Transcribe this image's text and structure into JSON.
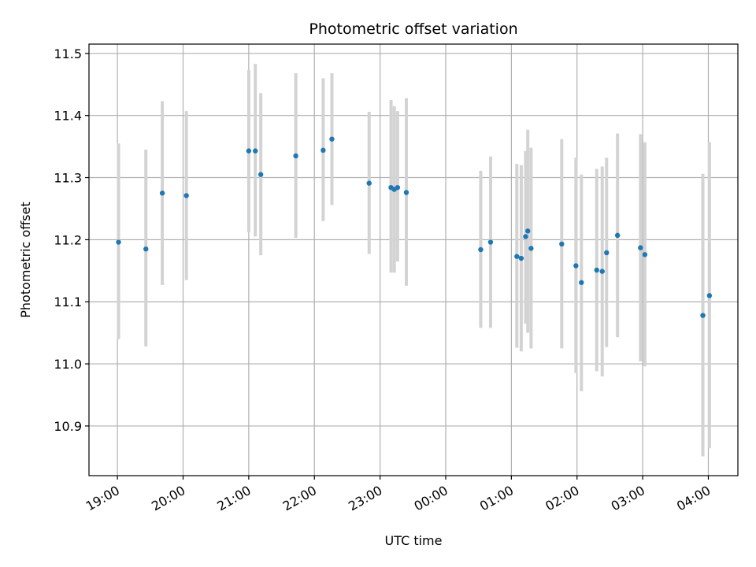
{
  "chart_data": {
    "type": "scatter",
    "title": "Photometric offset variation",
    "xlabel": "UTC time",
    "ylabel": "Photometric offset",
    "x_axis": {
      "type": "time",
      "tick_labels": [
        "19:00",
        "20:00",
        "21:00",
        "22:00",
        "23:00",
        "00:00",
        "01:00",
        "02:00",
        "03:00",
        "04:00"
      ],
      "range": [
        "18:34",
        "04:27"
      ]
    },
    "y_axis": {
      "ticks": [
        10.9,
        11.0,
        11.1,
        11.2,
        11.3,
        11.4,
        11.5
      ],
      "tick_labels": [
        "10.9",
        "11.0",
        "11.1",
        "11.2",
        "11.3",
        "11.4",
        "11.5"
      ],
      "ylim": [
        10.82,
        11.515
      ]
    },
    "grid": true,
    "colors": {
      "marker": "#1f77b4",
      "errorbar": "#d3d3d3",
      "grid": "#b0b0b0",
      "axis": "#000000"
    },
    "points": [
      {
        "time": "19:01",
        "y": 11.196,
        "err_low": 11.04,
        "err_high": 11.355
      },
      {
        "time": "19:26",
        "y": 11.185,
        "err_low": 11.028,
        "err_high": 11.345
      },
      {
        "time": "19:41",
        "y": 11.275,
        "err_low": 11.127,
        "err_high": 11.423
      },
      {
        "time": "20:03",
        "y": 11.271,
        "err_low": 11.135,
        "err_high": 11.407
      },
      {
        "time": "21:00",
        "y": 11.343,
        "err_low": 11.212,
        "err_high": 11.473
      },
      {
        "time": "21:06",
        "y": 11.343,
        "err_low": 11.205,
        "err_high": 11.483
      },
      {
        "time": "21:11",
        "y": 11.305,
        "err_low": 11.175,
        "err_high": 11.436
      },
      {
        "time": "21:43",
        "y": 11.335,
        "err_low": 11.203,
        "err_high": 11.468
      },
      {
        "time": "22:08",
        "y": 11.344,
        "err_low": 11.23,
        "err_high": 11.46
      },
      {
        "time": "22:16",
        "y": 11.362,
        "err_low": 11.256,
        "err_high": 11.468
      },
      {
        "time": "22:50",
        "y": 11.291,
        "err_low": 11.177,
        "err_high": 11.406
      },
      {
        "time": "23:10",
        "y": 11.284,
        "err_low": 11.147,
        "err_high": 11.425
      },
      {
        "time": "23:13",
        "y": 11.281,
        "err_low": 11.147,
        "err_high": 11.415
      },
      {
        "time": "23:16",
        "y": 11.284,
        "err_low": 11.165,
        "err_high": 11.407
      },
      {
        "time": "23:24",
        "y": 11.276,
        "err_low": 11.126,
        "err_high": 11.428
      },
      {
        "time": "00:32",
        "y": 11.184,
        "err_low": 11.058,
        "err_high": 11.311
      },
      {
        "time": "00:41",
        "y": 11.196,
        "err_low": 11.058,
        "err_high": 11.334
      },
      {
        "time": "01:05",
        "y": 11.173,
        "err_low": 11.026,
        "err_high": 11.322
      },
      {
        "time": "01:09",
        "y": 11.17,
        "err_low": 11.02,
        "err_high": 11.32
      },
      {
        "time": "01:13",
        "y": 11.205,
        "err_low": 11.065,
        "err_high": 11.343
      },
      {
        "time": "01:15",
        "y": 11.214,
        "err_low": 11.05,
        "err_high": 11.377
      },
      {
        "time": "01:18",
        "y": 11.186,
        "err_low": 11.025,
        "err_high": 11.348
      },
      {
        "time": "01:46",
        "y": 11.193,
        "err_low": 11.025,
        "err_high": 11.362
      },
      {
        "time": "01:59",
        "y": 11.158,
        "err_low": 10.985,
        "err_high": 11.332
      },
      {
        "time": "02:04",
        "y": 11.131,
        "err_low": 10.956,
        "err_high": 11.305
      },
      {
        "time": "02:18",
        "y": 11.151,
        "err_low": 10.988,
        "err_high": 11.314
      },
      {
        "time": "02:23",
        "y": 11.149,
        "err_low": 10.98,
        "err_high": 11.318
      },
      {
        "time": "02:27",
        "y": 11.179,
        "err_low": 11.027,
        "err_high": 11.332
      },
      {
        "time": "02:37",
        "y": 11.207,
        "err_low": 11.043,
        "err_high": 11.371
      },
      {
        "time": "02:58",
        "y": 11.187,
        "err_low": 11.004,
        "err_high": 11.37
      },
      {
        "time": "03:02",
        "y": 11.176,
        "err_low": 10.996,
        "err_high": 11.357
      },
      {
        "time": "03:55",
        "y": 11.078,
        "err_low": 10.851,
        "err_high": 11.306
      },
      {
        "time": "04:01",
        "y": 11.11,
        "err_low": 10.864,
        "err_high": 11.357
      }
    ]
  }
}
